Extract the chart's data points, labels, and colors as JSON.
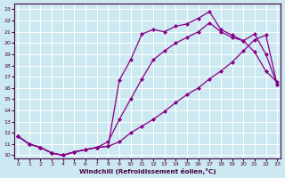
{
  "xlabel": "Windchill (Refroidissement éolien,°C)",
  "bg_color": "#cce8f0",
  "line_color": "#880088",
  "grid_color": "#ffffff",
  "x_ticks": [
    0,
    1,
    2,
    3,
    4,
    5,
    6,
    7,
    8,
    9,
    10,
    11,
    12,
    13,
    14,
    15,
    16,
    17,
    18,
    19,
    20,
    21,
    22,
    23
  ],
  "y_ticks": [
    10,
    11,
    12,
    13,
    14,
    15,
    16,
    17,
    18,
    19,
    20,
    21,
    22,
    23
  ],
  "ylim": [
    9.7,
    23.5
  ],
  "xlim": [
    -0.3,
    23.3
  ],
  "line1_x": [
    0,
    1,
    2,
    3,
    4,
    5,
    6,
    7,
    8,
    9,
    10,
    11,
    12,
    13,
    14,
    15,
    16,
    17,
    18,
    19,
    20,
    21,
    22,
    23
  ],
  "line1_y": [
    11.7,
    11.0,
    10.7,
    10.2,
    10.0,
    10.3,
    10.5,
    10.7,
    10.8,
    16.7,
    18.5,
    20.8,
    21.2,
    21.0,
    21.5,
    21.7,
    22.2,
    22.8,
    21.2,
    20.7,
    20.2,
    19.2,
    17.5,
    16.5
  ],
  "line2_x": [
    0,
    1,
    2,
    3,
    4,
    5,
    6,
    7,
    8,
    9,
    10,
    11,
    12,
    13,
    14,
    15,
    16,
    17,
    18,
    19,
    20,
    21,
    22,
    23
  ],
  "line2_y": [
    11.7,
    11.0,
    10.7,
    10.2,
    10.0,
    10.3,
    10.5,
    10.7,
    10.8,
    11.2,
    12.0,
    12.6,
    13.2,
    13.9,
    14.7,
    15.4,
    16.0,
    16.8,
    17.5,
    18.3,
    19.3,
    20.3,
    20.7,
    16.3
  ],
  "line3_x": [
    0,
    1,
    2,
    3,
    4,
    5,
    6,
    7,
    8,
    9,
    10,
    11,
    12,
    13,
    14,
    15,
    16,
    17,
    18,
    19,
    20,
    21,
    22,
    23
  ],
  "line3_y": [
    11.7,
    11.0,
    10.7,
    10.2,
    10.0,
    10.3,
    10.5,
    10.7,
    11.2,
    13.2,
    15.0,
    16.8,
    18.5,
    19.3,
    20.0,
    20.5,
    21.0,
    21.8,
    21.0,
    20.5,
    20.2,
    20.8,
    19.0,
    16.3
  ]
}
